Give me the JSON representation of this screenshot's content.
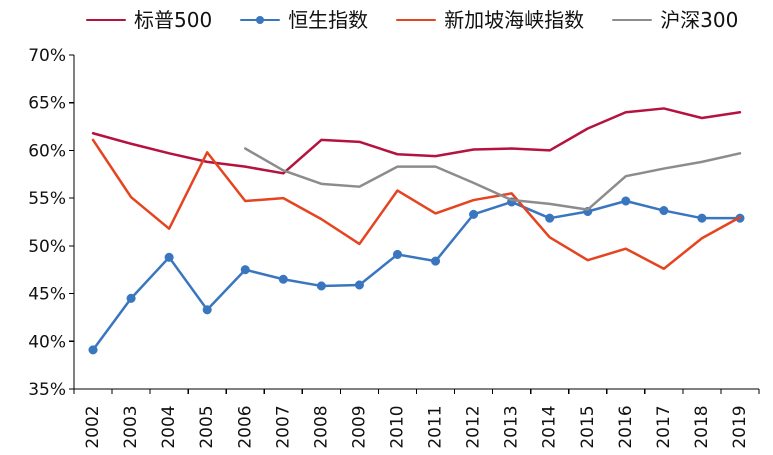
{
  "chart_data": {
    "type": "line",
    "categories": [
      "2002",
      "2003",
      "2004",
      "2005",
      "2006",
      "2007",
      "2008",
      "2009",
      "2010",
      "2011",
      "2012",
      "2013",
      "2014",
      "2015",
      "2016",
      "2017",
      "2018",
      "2019"
    ],
    "y_tick_labels": [
      "35%",
      "40%",
      "45%",
      "50%",
      "55%",
      "60%",
      "65%",
      "70%"
    ],
    "ylim": [
      35,
      70
    ],
    "grid": false,
    "legend_position": "top",
    "title": "",
    "xlabel": "",
    "ylabel": "",
    "series": [
      {
        "name": "标普500",
        "color": "#b5123f",
        "markers": false,
        "values": [
          61.8,
          60.7,
          59.7,
          58.8,
          58.3,
          57.6,
          61.1,
          60.9,
          59.6,
          59.4,
          60.1,
          60.2,
          60.0,
          62.3,
          64.0,
          64.4,
          63.4,
          64.0
        ]
      },
      {
        "name": "恒生指数",
        "color": "#3a76c0",
        "markers": true,
        "values": [
          39.1,
          44.5,
          48.8,
          43.3,
          47.5,
          46.5,
          45.8,
          45.9,
          49.1,
          48.4,
          53.3,
          54.6,
          52.9,
          53.6,
          54.7,
          53.7,
          52.9,
          52.9
        ]
      },
      {
        "name": "新加坡海峡指数",
        "color": "#e5441f",
        "markers": false,
        "values": [
          61.1,
          55.1,
          51.8,
          59.8,
          54.7,
          55.0,
          52.8,
          50.2,
          55.8,
          53.4,
          54.8,
          55.5,
          50.9,
          48.5,
          49.7,
          47.6,
          50.8,
          53.0
        ]
      },
      {
        "name": "沪深300",
        "color": "#8c8c8c",
        "markers": false,
        "values": [
          null,
          null,
          null,
          null,
          60.2,
          57.9,
          56.5,
          56.2,
          58.3,
          58.3,
          56.6,
          54.8,
          54.4,
          53.8,
          57.3,
          58.1,
          58.8,
          59.7
        ]
      }
    ]
  }
}
